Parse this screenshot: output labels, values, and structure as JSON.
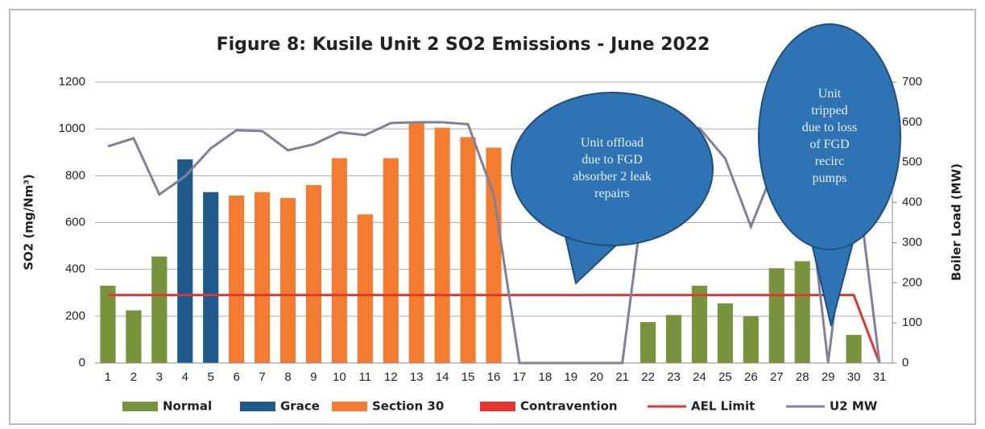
{
  "chart_data": {
    "type": "bar",
    "title": "Figure 8: Kusile Unit 2 SO2 Emissions -  June 2022",
    "y_label": "SO2 (mg/Nm³)",
    "y2_label": "Boiler Load (MW)",
    "categories": [
      "1",
      "2",
      "3",
      "4",
      "5",
      "6",
      "7",
      "8",
      "9",
      "10",
      "11",
      "12",
      "13",
      "14",
      "15",
      "16",
      "17",
      "18",
      "19",
      "20",
      "21",
      "22",
      "23",
      "24",
      "25",
      "26",
      "27",
      "28",
      "29",
      "30",
      "31"
    ],
    "series": [
      {
        "name": "Normal",
        "color": "#77933c",
        "kind": "bar",
        "values": [
          330,
          225,
          455,
          null,
          null,
          null,
          null,
          null,
          null,
          null,
          null,
          null,
          null,
          null,
          null,
          null,
          null,
          null,
          null,
          null,
          null,
          175,
          205,
          330,
          255,
          200,
          405,
          435,
          null,
          120,
          null
        ]
      },
      {
        "name": "Grace",
        "color": "#1f5a8c",
        "kind": "bar",
        "values": [
          null,
          null,
          null,
          870,
          730,
          null,
          null,
          null,
          null,
          null,
          null,
          null,
          null,
          null,
          null,
          null,
          null,
          null,
          null,
          null,
          null,
          null,
          null,
          null,
          null,
          null,
          null,
          null,
          null,
          null,
          null
        ]
      },
      {
        "name": "Section 30",
        "color": "#f47c30",
        "kind": "bar",
        "values": [
          null,
          null,
          null,
          null,
          null,
          715,
          730,
          705,
          760,
          875,
          635,
          875,
          1025,
          1005,
          965,
          920,
          null,
          null,
          null,
          null,
          null,
          null,
          null,
          null,
          null,
          null,
          null,
          null,
          null,
          null,
          null
        ]
      },
      {
        "name": "Contravention",
        "color": "#e53531",
        "kind": "bar",
        "values": [
          null,
          null,
          null,
          null,
          null,
          null,
          null,
          null,
          null,
          null,
          null,
          null,
          null,
          null,
          null,
          null,
          null,
          null,
          null,
          null,
          null,
          null,
          null,
          null,
          null,
          null,
          null,
          null,
          null,
          null,
          null
        ]
      },
      {
        "name": "AEL Limit",
        "color": "#e53531",
        "kind": "line",
        "values": [
          290,
          290,
          290,
          290,
          290,
          290,
          290,
          290,
          290,
          290,
          290,
          290,
          290,
          290,
          290,
          290,
          290,
          290,
          290,
          290,
          290,
          290,
          290,
          290,
          290,
          290,
          290,
          290,
          290,
          290,
          0
        ]
      },
      {
        "name": "U2 MW",
        "color": "#80809c",
        "kind": "line",
        "axis": "y2",
        "values": [
          540,
          560,
          420,
          465,
          535,
          580,
          578,
          530,
          545,
          575,
          568,
          598,
          600,
          600,
          595,
          420,
          0,
          0,
          0,
          0,
          0,
          500,
          580,
          585,
          510,
          340,
          500,
          560,
          0,
          520,
          0
        ]
      }
    ],
    "ylim": [
      0,
      1200
    ],
    "yticks": [
      0,
      200,
      400,
      600,
      800,
      1000,
      1200
    ],
    "y2lim": [
      0,
      700
    ],
    "y2ticks": [
      0,
      100,
      200,
      300,
      400,
      500,
      600,
      700
    ],
    "grid": true,
    "legend": "bottom",
    "annotations": [
      {
        "lines": [
          "Unit offload",
          "due to FGD",
          "absorber 2 leak",
          "repairs"
        ]
      },
      {
        "lines": [
          "Unit",
          "tripped",
          "due to loss",
          "of FGD",
          "recirc",
          "pumps"
        ]
      }
    ]
  }
}
